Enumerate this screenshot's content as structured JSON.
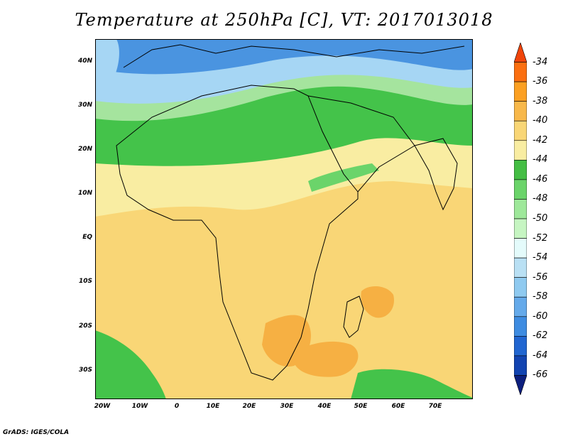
{
  "title": "Temperature at 250hPa [C], VT: 2017013018",
  "credit": "GrADS: IGES/COLA",
  "y_ticks": [
    "40N",
    "30N",
    "20N",
    "10N",
    "EQ",
    "10S",
    "20S",
    "30S"
  ],
  "x_ticks": [
    "20W",
    "10W",
    "0",
    "10E",
    "20E",
    "30E",
    "40E",
    "50E",
    "60E",
    "70E"
  ],
  "colorbar": {
    "labels": [
      "-34",
      "-36",
      "-38",
      "-40",
      "-42",
      "-44",
      "-46",
      "-48",
      "-50",
      "-52",
      "-54",
      "-56",
      "-58",
      "-60",
      "-62",
      "-64",
      "-66"
    ],
    "colors": [
      "#f0440a",
      "#fb6f10",
      "#fca022",
      "#f8b84a",
      "#f9d676",
      "#f9eda2",
      "#44be44",
      "#6bd46a",
      "#9ee89a",
      "#c6f5c2",
      "#e4fbfb",
      "#b9e0f4",
      "#8fcaf0",
      "#65aaea",
      "#3e8ce1",
      "#2166d1",
      "#1244b1",
      "#0c1f7e"
    ]
  },
  "map_colors": {
    "cold_blue": "#4a94e0",
    "light_blue": "#a6d6f4",
    "green": "#44c34a",
    "light_green": "#a5e49e",
    "pale_yellow": "#f9eda2",
    "yellow": "#f9d676",
    "orange": "#f6b043"
  }
}
